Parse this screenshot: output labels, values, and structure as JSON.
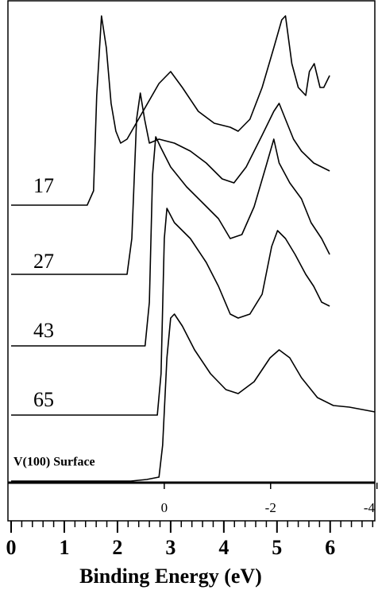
{
  "chart_data": {
    "type": "line",
    "xlabel": "Binding Energy (eV)",
    "xlim": [
      -0.06,
      6.84
    ],
    "xticks": [
      0,
      1,
      2,
      3,
      4,
      5,
      6
    ],
    "xminor": 0.2,
    "x2lim": [
      2.94,
      -3.96
    ],
    "x2ticks": [
      0,
      -2,
      -4
    ],
    "ylim": [
      0,
      607
    ],
    "series": [
      {
        "name": "17",
        "color": "#000000",
        "x": [
          0,
          1.43,
          1.55,
          1.61,
          1.7,
          1.79,
          1.88,
          1.97,
          2.06,
          2.18,
          2.48,
          2.78,
          3.0,
          3.22,
          3.52,
          3.82,
          4.12,
          4.27,
          4.49,
          4.72,
          4.94,
          5.09,
          5.16,
          5.28,
          5.4,
          5.54,
          5.61,
          5.7,
          5.81,
          5.88,
          5.99
        ],
        "values": [
          349,
          349,
          367,
          487,
          587,
          547,
          477,
          442,
          427,
          432,
          467,
          502,
          517,
          497,
          467,
          452,
          447,
          442,
          457,
          497,
          547,
          582,
          587,
          527,
          497,
          487,
          517,
          527,
          497,
          497,
          512
        ]
      },
      {
        "name": "27",
        "color": "#000000",
        "x": [
          0,
          2.18,
          2.27,
          2.36,
          2.43,
          2.51,
          2.6,
          2.78,
          3.07,
          3.37,
          3.67,
          3.97,
          4.19,
          4.42,
          4.72,
          4.94,
          5.04,
          5.16,
          5.31,
          5.46,
          5.69,
          5.84,
          5.99
        ],
        "values": [
          262,
          262,
          307,
          457,
          490,
          457,
          427,
          432,
          427,
          417,
          402,
          382,
          377,
          397,
          437,
          467,
          477,
          457,
          432,
          417,
          402,
          397,
          392
        ]
      },
      {
        "name": "43",
        "color": "#000000",
        "x": [
          0,
          2.52,
          2.6,
          2.66,
          2.72,
          2.81,
          3.0,
          3.3,
          3.6,
          3.9,
          4.12,
          4.34,
          4.57,
          4.79,
          4.94,
          5.04,
          5.24,
          5.46,
          5.64,
          5.84,
          5.99
        ],
        "values": [
          172,
          172,
          227,
          387,
          435,
          422,
          397,
          372,
          352,
          332,
          307,
          312,
          347,
          397,
          432,
          402,
          377,
          357,
          327,
          307,
          287
        ]
      },
      {
        "name": "65",
        "color": "#000000",
        "x": [
          0,
          2.75,
          2.82,
          2.88,
          2.93,
          3.07,
          3.37,
          3.67,
          3.9,
          4.12,
          4.27,
          4.49,
          4.72,
          4.9,
          5.01,
          5.16,
          5.34,
          5.54,
          5.69,
          5.84,
          5.99
        ],
        "values": [
          85,
          85,
          137,
          307,
          345,
          327,
          307,
          277,
          247,
          212,
          207,
          212,
          237,
          297,
          317,
          307,
          287,
          262,
          247,
          227,
          222
        ]
      },
      {
        "name": "V(100) Surface",
        "color": "#000000",
        "x": [
          0,
          2.25,
          2.55,
          2.78,
          2.85,
          2.93,
          3.0,
          3.07,
          3.22,
          3.45,
          3.75,
          4.04,
          4.27,
          4.57,
          4.87,
          5.04,
          5.24,
          5.46,
          5.76,
          6.06,
          6.36,
          6.84
        ],
        "values": [
          2,
          2,
          4,
          7,
          47,
          157,
          207,
          212,
          197,
          167,
          137,
          117,
          112,
          127,
          157,
          167,
          157,
          132,
          107,
          97,
          95,
          89
        ]
      }
    ]
  }
}
